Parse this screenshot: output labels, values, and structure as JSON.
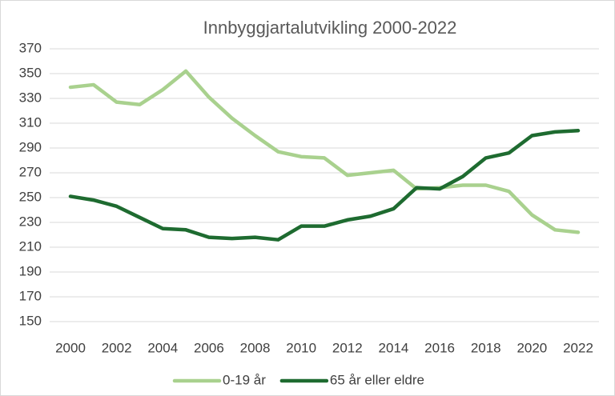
{
  "chart_data": {
    "type": "line",
    "title": "Innbyggjartalutvikling 2000-2022",
    "x": [
      2000,
      2001,
      2002,
      2003,
      2004,
      2005,
      2006,
      2007,
      2008,
      2009,
      2010,
      2011,
      2012,
      2013,
      2014,
      2015,
      2016,
      2017,
      2018,
      2019,
      2020,
      2021,
      2022
    ],
    "series": [
      {
        "name": "0-19 år",
        "color": "#a9d18e",
        "values": [
          339,
          341,
          327,
          325,
          337,
          352,
          331,
          314,
          300,
          287,
          283,
          282,
          268,
          270,
          272,
          257,
          258,
          260,
          260,
          255,
          236,
          224,
          222
        ]
      },
      {
        "name": "65 år eller eldre",
        "color": "#1e6b30",
        "values": [
          251,
          248,
          243,
          234,
          225,
          224,
          218,
          217,
          218,
          216,
          227,
          227,
          232,
          235,
          241,
          258,
          257,
          267,
          282,
          286,
          300,
          303,
          304
        ]
      }
    ],
    "xlim": [
      2000,
      2022
    ],
    "xticks": [
      2000,
      2002,
      2004,
      2006,
      2008,
      2010,
      2012,
      2014,
      2016,
      2018,
      2020,
      2022
    ],
    "ylim": [
      150,
      370
    ],
    "yticks": [
      150,
      170,
      190,
      210,
      230,
      250,
      270,
      290,
      310,
      330,
      350,
      370
    ],
    "grid": true,
    "legend": "bottom"
  }
}
